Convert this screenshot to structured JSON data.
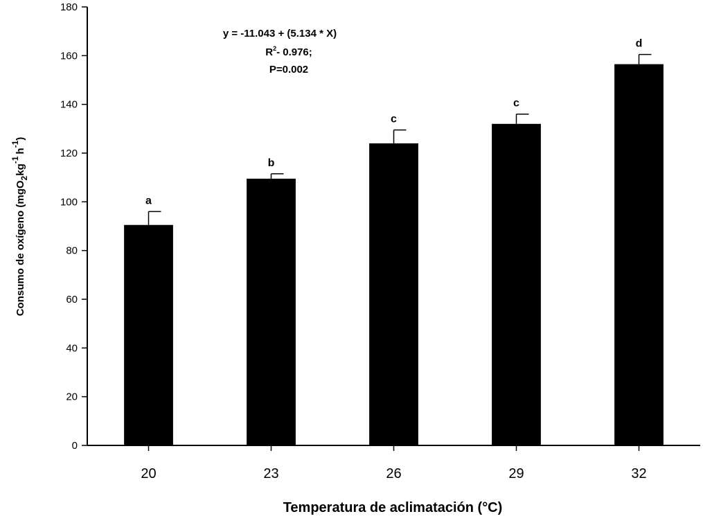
{
  "chart_data": {
    "type": "bar",
    "categories": [
      "20",
      "23",
      "26",
      "29",
      "32"
    ],
    "values": [
      90.5,
      109.5,
      124,
      132,
      156.5
    ],
    "error_upper": [
      5.5,
      2,
      5.5,
      4,
      4
    ],
    "significance_letters": [
      "a",
      "b",
      "c",
      "c",
      "d"
    ],
    "xlabel": "Temperatura de aclimatación (°C)",
    "ylabel": {
      "prefix": "Consumo de oxígeno (mgO",
      "sub": "2",
      "kg": "kg",
      "kg_sup": "-1",
      "h": "h",
      "h_sup": "-1",
      "close": ")"
    },
    "ylim": [
      0,
      180
    ],
    "yticks": [
      0,
      20,
      40,
      60,
      80,
      100,
      120,
      140,
      160,
      180
    ],
    "bar_color": "#000000",
    "grid": false,
    "annotation": {
      "equation": "y = -11.043 + (5.134 * X)",
      "r2_prefix": "R",
      "r2_sup": "2",
      "r2_value": "- 0.976;",
      "p_value": "P=0.002"
    }
  }
}
